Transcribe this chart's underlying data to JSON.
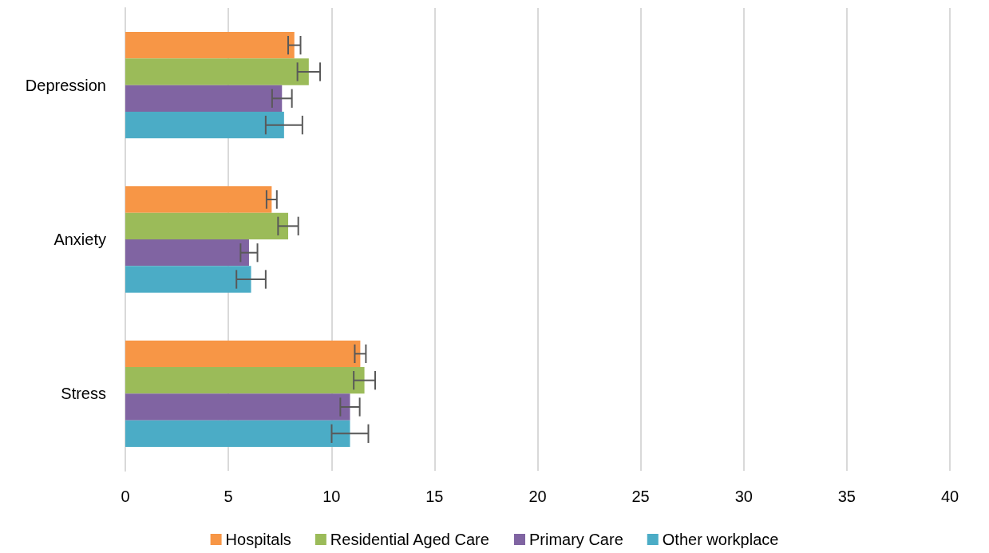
{
  "chart_data": {
    "type": "bar",
    "orientation": "horizontal",
    "categories": [
      "Depression",
      "Anxiety",
      "Stress"
    ],
    "series": [
      {
        "name": "Hospitals",
        "color": "#f79646",
        "values": [
          8.2,
          7.1,
          11.4
        ],
        "errors": [
          0.3,
          0.25,
          0.27
        ]
      },
      {
        "name": "Residential Aged Care",
        "color": "#9bbb59",
        "values": [
          8.9,
          7.9,
          11.6
        ],
        "errors": [
          0.55,
          0.49,
          0.52
        ]
      },
      {
        "name": "Primary Care",
        "color": "#8064a2",
        "values": [
          7.6,
          6.0,
          10.9
        ],
        "errors": [
          0.48,
          0.41,
          0.47
        ]
      },
      {
        "name": "Other workplace",
        "color": "#4bacc6",
        "values": [
          7.7,
          6.1,
          10.9
        ],
        "errors": [
          0.89,
          0.71,
          0.89
        ]
      }
    ],
    "xlim": [
      0,
      40
    ],
    "xticks": [
      0,
      5,
      10,
      15,
      20,
      25,
      30,
      35,
      40
    ],
    "grid": "x",
    "legend": "bottom"
  }
}
